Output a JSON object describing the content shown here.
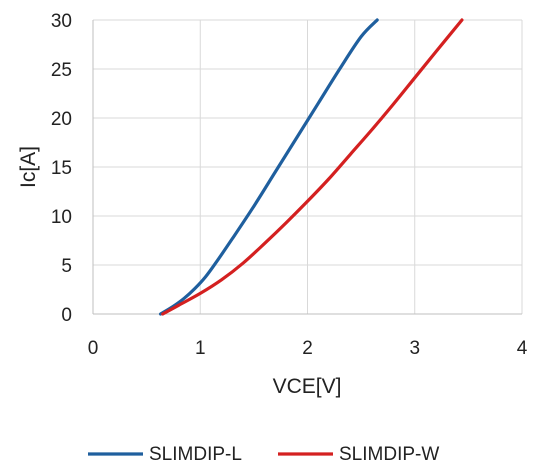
{
  "chart_data": {
    "type": "line",
    "title": "",
    "xlabel": "VCE[V]",
    "ylabel": "Ic[A]",
    "xlim": [
      0,
      4
    ],
    "ylim": [
      0,
      30
    ],
    "xticks": [
      0,
      1,
      2,
      3,
      4
    ],
    "yticks": [
      0,
      5,
      10,
      15,
      20,
      25,
      30
    ],
    "xtick_labels": [
      "0",
      "1",
      "2",
      "3",
      "4"
    ],
    "ytick_labels": [
      "0",
      "5",
      "10",
      "15",
      "20",
      "25",
      "30"
    ],
    "grid": true,
    "legend_position": "bottom",
    "series": [
      {
        "name": "SLIMDIP-L",
        "color": "#1f5f9e",
        "x": [
          0.63,
          0.75,
          0.85,
          0.95,
          1.05,
          1.15,
          1.3,
          1.5,
          1.7,
          1.9,
          2.1,
          2.3,
          2.5,
          2.65
        ],
        "y": [
          0,
          0.8,
          1.6,
          2.6,
          3.8,
          5.3,
          7.7,
          11.0,
          14.5,
          18.0,
          21.5,
          25.0,
          28.3,
          30
        ]
      },
      {
        "name": "SLIMDIP-W",
        "color": "#d42020",
        "x": [
          0.65,
          0.8,
          1.0,
          1.2,
          1.4,
          1.6,
          1.8,
          2.0,
          2.2,
          2.4,
          2.6,
          2.8,
          3.0,
          3.2,
          3.44
        ],
        "y": [
          0,
          0.9,
          2.1,
          3.5,
          5.2,
          7.2,
          9.3,
          11.5,
          13.8,
          16.3,
          18.8,
          21.4,
          24.1,
          26.8,
          30
        ]
      }
    ]
  }
}
